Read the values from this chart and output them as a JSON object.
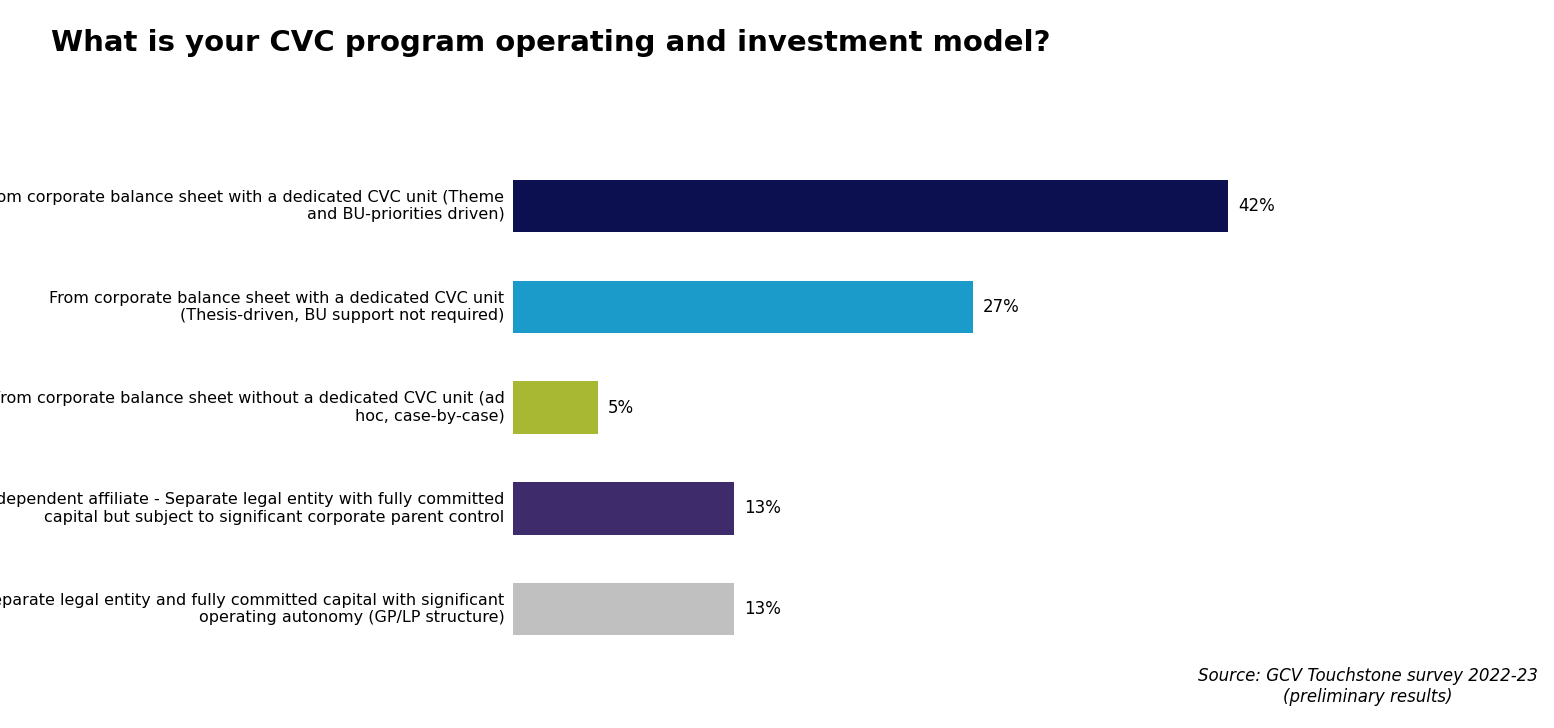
{
  "title": "What is your CVC program operating and investment model?",
  "title_fontsize": 21,
  "title_fontweight": "bold",
  "categories": [
    "Separate legal entity and fully committed capital with significant\noperating autonomy (GP/LP structure)",
    "Independent affiliate - Separate legal entity with fully committed\ncapital but subject to significant corporate parent control",
    "From corporate balance sheet without a dedicated CVC unit (ad\nhoc, case-by-case)",
    "From corporate balance sheet with a dedicated CVC unit\n(Thesis-driven, BU support not required)",
    "From corporate balance sheet with a dedicated CVC unit (Theme\nand BU-priorities driven)"
  ],
  "values": [
    13,
    13,
    5,
    27,
    42
  ],
  "bar_colors": [
    "#c0c0c0",
    "#3d2b6b",
    "#a8b832",
    "#1a9bc9",
    "#0d1050"
  ],
  "value_labels": [
    "13%",
    "13%",
    "5%",
    "27%",
    "42%"
  ],
  "xlim": [
    0,
    52
  ],
  "bar_height": 0.52,
  "background_color": "#ffffff",
  "source_text": "Source: GCV Touchstone survey 2022-23\n(preliminary results)",
  "source_fontsize": 12,
  "label_fontsize": 11.5,
  "value_fontsize": 12,
  "grid_color": "#cccccc"
}
